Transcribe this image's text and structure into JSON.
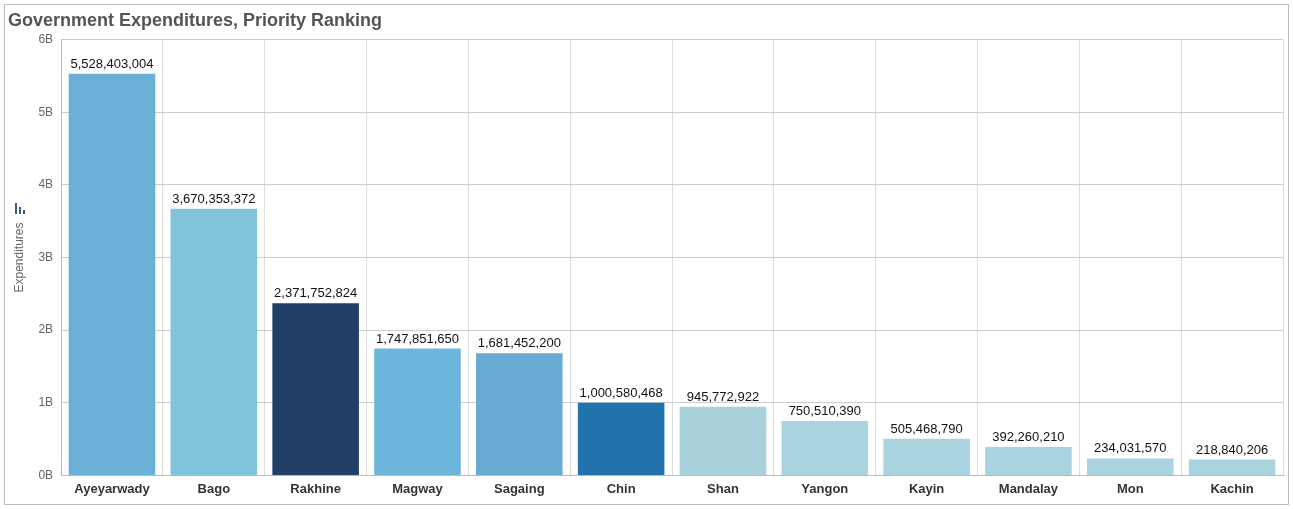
{
  "chart_data": {
    "type": "bar",
    "title": "Government Expenditures, Priority Ranking",
    "ylabel": "Expenditures",
    "categories": [
      "Ayeyarwady",
      "Bago",
      "Rakhine",
      "Magway",
      "Sagaing",
      "Chin",
      "Shan",
      "Yangon",
      "Kayin",
      "Mandalay",
      "Mon",
      "Kachin"
    ],
    "values": [
      5528403004,
      3670353372,
      2371752824,
      1747851650,
      1681452200,
      1000580468,
      945772922,
      750510390,
      505468790,
      392260210,
      234031570,
      218840206
    ],
    "colors": [
      "#6aafd6",
      "#82c3dc",
      "#213f66",
      "#6cb6dc",
      "#67aad2",
      "#2272ae",
      "#a9d2dc",
      "#a9d3de",
      "#a9d3de",
      "#a9d3de",
      "#a9d3de",
      "#a9d3de"
    ],
    "ylim": [
      0,
      6000000000
    ],
    "yticks": [
      {
        "value": 0,
        "label": "0B"
      },
      {
        "value": 1000000000,
        "label": "1B"
      },
      {
        "value": 2000000000,
        "label": "2B"
      },
      {
        "value": 3000000000,
        "label": "3B"
      },
      {
        "value": 4000000000,
        "label": "4B"
      },
      {
        "value": 5000000000,
        "label": "5B"
      },
      {
        "value": 6000000000,
        "label": "6B"
      }
    ],
    "value_labels": [
      "5,528,403,004",
      "3,670,353,372",
      "2,371,752,824",
      "1,747,851,650",
      "1,681,452,200",
      "1,000,580,468",
      "945,772,922",
      "750,510,390",
      "505,468,790",
      "392,260,210",
      "234,031,570",
      "218,840,206"
    ],
    "grid": true,
    "legend": false
  }
}
